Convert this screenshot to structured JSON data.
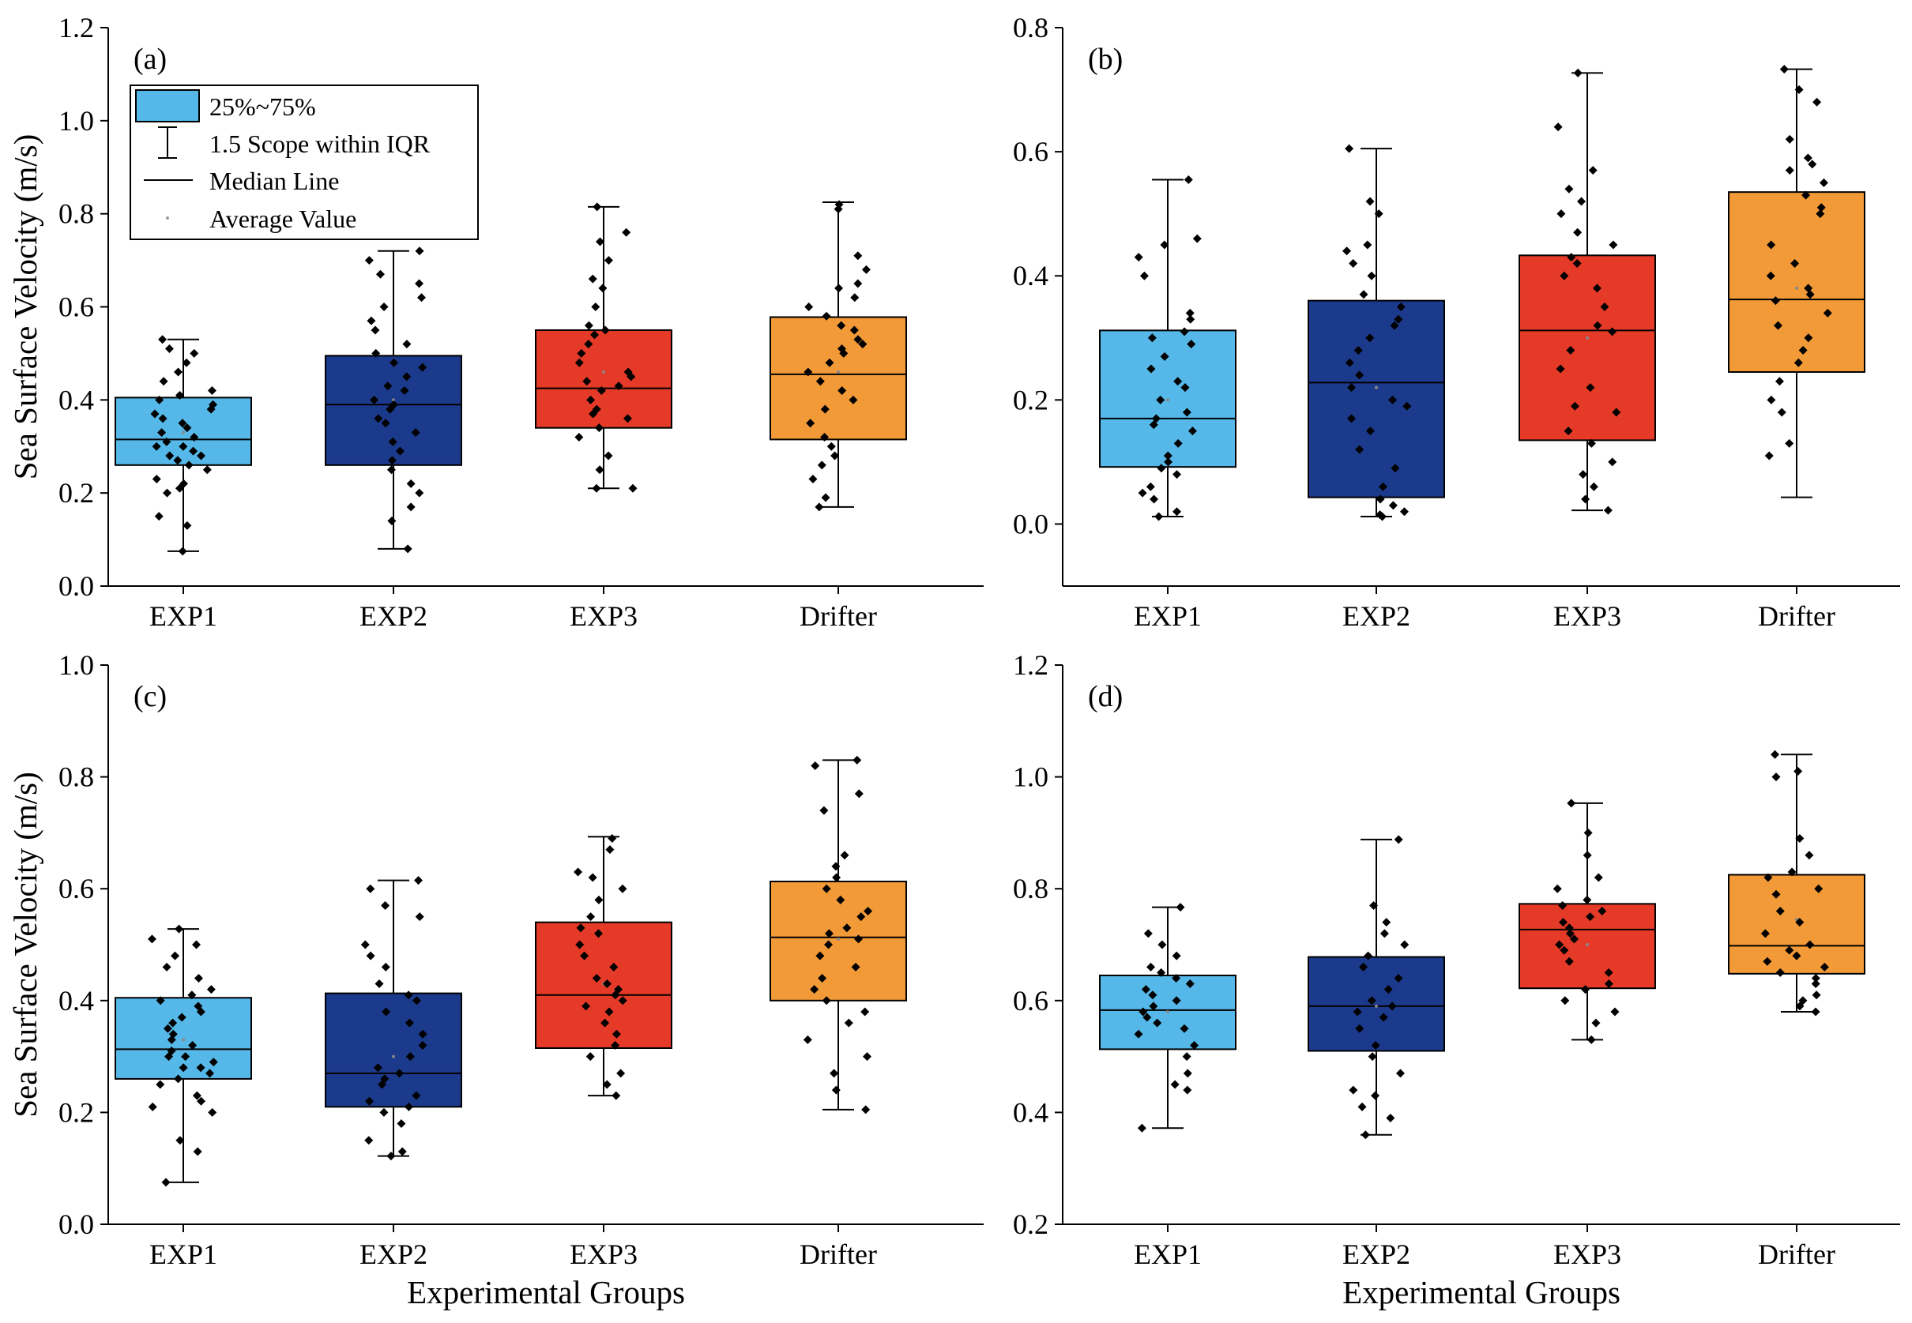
{
  "chart_data": [
    {
      "panel": "(a)",
      "type": "box",
      "ylabel": "Sea Surface Velocity (m/s)",
      "xlabel": "",
      "ylim": [
        0.0,
        1.2
      ],
      "yticks": [
        "0.0",
        "0.2",
        "0.4",
        "0.6",
        "0.8",
        "1.0",
        "1.2"
      ],
      "categories": [
        "EXP1",
        "EXP2",
        "EXP3",
        "Drifter"
      ],
      "boxes": [
        {
          "name": "EXP1",
          "color": "#55b8e8",
          "whisker_low": 0.075,
          "q1": 0.26,
          "median": 0.315,
          "q3": 0.405,
          "whisker_high": 0.53,
          "mean": 0.33,
          "points": [
            0.075,
            0.13,
            0.15,
            0.2,
            0.21,
            0.22,
            0.23,
            0.25,
            0.26,
            0.27,
            0.28,
            0.28,
            0.29,
            0.3,
            0.3,
            0.31,
            0.32,
            0.33,
            0.34,
            0.35,
            0.36,
            0.37,
            0.38,
            0.39,
            0.4,
            0.41,
            0.42,
            0.44,
            0.46,
            0.48,
            0.5,
            0.51,
            0.53
          ]
        },
        {
          "name": "EXP2",
          "color": "#1c3a8c",
          "whisker_low": 0.08,
          "q1": 0.26,
          "median": 0.39,
          "q3": 0.495,
          "whisker_high": 0.72,
          "mean": 0.4,
          "points": [
            0.08,
            0.14,
            0.17,
            0.2,
            0.22,
            0.25,
            0.27,
            0.29,
            0.31,
            0.33,
            0.35,
            0.36,
            0.38,
            0.39,
            0.4,
            0.42,
            0.43,
            0.45,
            0.47,
            0.48,
            0.5,
            0.52,
            0.55,
            0.57,
            0.6,
            0.62,
            0.65,
            0.67,
            0.7,
            0.72
          ]
        },
        {
          "name": "EXP3",
          "color": "#e53a27",
          "whisker_low": 0.21,
          "q1": 0.34,
          "median": 0.425,
          "q3": 0.55,
          "whisker_high": 0.815,
          "mean": 0.46,
          "points": [
            0.21,
            0.21,
            0.25,
            0.28,
            0.32,
            0.34,
            0.36,
            0.37,
            0.38,
            0.4,
            0.42,
            0.43,
            0.44,
            0.45,
            0.46,
            0.48,
            0.5,
            0.52,
            0.54,
            0.55,
            0.56,
            0.6,
            0.64,
            0.66,
            0.7,
            0.74,
            0.76,
            0.815
          ]
        },
        {
          "name": "Drifter",
          "color": "#f29a38",
          "whisker_low": 0.17,
          "q1": 0.315,
          "median": 0.455,
          "q3": 0.578,
          "whisker_high": 0.825,
          "mean": 0.46,
          "points": [
            0.17,
            0.19,
            0.23,
            0.26,
            0.28,
            0.3,
            0.32,
            0.35,
            0.38,
            0.4,
            0.42,
            0.44,
            0.46,
            0.48,
            0.5,
            0.51,
            0.52,
            0.53,
            0.55,
            0.56,
            0.58,
            0.6,
            0.62,
            0.64,
            0.65,
            0.68,
            0.71,
            0.81,
            0.82
          ]
        }
      ]
    },
    {
      "panel": "(b)",
      "type": "box",
      "ylabel": "",
      "xlabel": "",
      "ylim": [
        -0.1,
        0.8
      ],
      "yticks": [
        "0.0",
        "0.2",
        "0.4",
        "0.6",
        "0.8"
      ],
      "categories": [
        "EXP1",
        "EXP2",
        "EXP3",
        "Drifter"
      ],
      "boxes": [
        {
          "name": "EXP1",
          "color": "#55b8e8",
          "whisker_low": 0.012,
          "q1": 0.092,
          "median": 0.17,
          "q3": 0.312,
          "whisker_high": 0.555,
          "mean": 0.2,
          "points": [
            0.012,
            0.02,
            0.04,
            0.05,
            0.06,
            0.08,
            0.09,
            0.1,
            0.11,
            0.13,
            0.15,
            0.16,
            0.17,
            0.18,
            0.2,
            0.22,
            0.23,
            0.25,
            0.27,
            0.29,
            0.3,
            0.31,
            0.33,
            0.34,
            0.4,
            0.43,
            0.45,
            0.46,
            0.555
          ]
        },
        {
          "name": "EXP2",
          "color": "#1c3a8c",
          "whisker_low": 0.012,
          "q1": 0.043,
          "median": 0.228,
          "q3": 0.36,
          "whisker_high": 0.605,
          "mean": 0.22,
          "points": [
            0.012,
            0.015,
            0.02,
            0.03,
            0.04,
            0.06,
            0.09,
            0.12,
            0.15,
            0.17,
            0.19,
            0.2,
            0.22,
            0.24,
            0.26,
            0.28,
            0.3,
            0.32,
            0.33,
            0.35,
            0.37,
            0.4,
            0.42,
            0.44,
            0.45,
            0.5,
            0.52,
            0.605
          ]
        },
        {
          "name": "EXP3",
          "color": "#e53a27",
          "whisker_low": 0.022,
          "q1": 0.135,
          "median": 0.312,
          "q3": 0.433,
          "whisker_high": 0.727,
          "mean": 0.3,
          "points": [
            0.022,
            0.04,
            0.06,
            0.08,
            0.1,
            0.13,
            0.15,
            0.18,
            0.19,
            0.22,
            0.25,
            0.28,
            0.31,
            0.32,
            0.35,
            0.38,
            0.4,
            0.42,
            0.43,
            0.45,
            0.47,
            0.5,
            0.52,
            0.54,
            0.57,
            0.64,
            0.727
          ]
        },
        {
          "name": "Drifter",
          "color": "#f29a38",
          "whisker_low": 0.043,
          "q1": 0.245,
          "median": 0.362,
          "q3": 0.535,
          "whisker_high": 0.733,
          "mean": 0.38,
          "points": [
            0.11,
            0.13,
            0.18,
            0.2,
            0.23,
            0.26,
            0.28,
            0.3,
            0.32,
            0.34,
            0.36,
            0.37,
            0.38,
            0.4,
            0.42,
            0.45,
            0.5,
            0.51,
            0.53,
            0.55,
            0.57,
            0.58,
            0.59,
            0.62,
            0.68,
            0.7,
            0.733
          ]
        }
      ]
    },
    {
      "panel": "(c)",
      "type": "box",
      "ylabel": "Sea Surface Velocity (m/s)",
      "xlabel": "Experimental Groups",
      "ylim": [
        0.0,
        1.0
      ],
      "yticks": [
        "0.0",
        "0.2",
        "0.4",
        "0.6",
        "0.8",
        "1.0"
      ],
      "categories": [
        "EXP1",
        "EXP2",
        "EXP3",
        "Drifter"
      ],
      "boxes": [
        {
          "name": "EXP1",
          "color": "#55b8e8",
          "whisker_low": 0.075,
          "q1": 0.26,
          "median": 0.313,
          "q3": 0.405,
          "whisker_high": 0.528,
          "mean": 0.33,
          "points": [
            0.075,
            0.13,
            0.15,
            0.2,
            0.21,
            0.22,
            0.23,
            0.25,
            0.26,
            0.27,
            0.28,
            0.28,
            0.29,
            0.3,
            0.3,
            0.31,
            0.32,
            0.33,
            0.34,
            0.35,
            0.36,
            0.37,
            0.38,
            0.39,
            0.4,
            0.41,
            0.42,
            0.44,
            0.46,
            0.48,
            0.5,
            0.51,
            0.528
          ]
        },
        {
          "name": "EXP2",
          "color": "#1c3a8c",
          "whisker_low": 0.122,
          "q1": 0.21,
          "median": 0.27,
          "q3": 0.413,
          "whisker_high": 0.615,
          "mean": 0.3,
          "points": [
            0.122,
            0.13,
            0.15,
            0.18,
            0.2,
            0.21,
            0.22,
            0.23,
            0.25,
            0.26,
            0.27,
            0.28,
            0.3,
            0.32,
            0.34,
            0.36,
            0.38,
            0.4,
            0.41,
            0.43,
            0.46,
            0.48,
            0.5,
            0.55,
            0.57,
            0.6,
            0.615
          ]
        },
        {
          "name": "EXP3",
          "color": "#e53a27",
          "whisker_low": 0.23,
          "q1": 0.315,
          "median": 0.41,
          "q3": 0.54,
          "whisker_high": 0.693,
          "mean": 0.43,
          "points": [
            0.23,
            0.25,
            0.27,
            0.3,
            0.32,
            0.34,
            0.36,
            0.38,
            0.39,
            0.4,
            0.41,
            0.42,
            0.43,
            0.44,
            0.46,
            0.48,
            0.5,
            0.52,
            0.53,
            0.55,
            0.58,
            0.6,
            0.62,
            0.63,
            0.67,
            0.69
          ]
        },
        {
          "name": "Drifter",
          "color": "#f29a38",
          "whisker_low": 0.205,
          "q1": 0.4,
          "median": 0.513,
          "q3": 0.613,
          "whisker_high": 0.83,
          "mean": 0.51,
          "points": [
            0.205,
            0.24,
            0.27,
            0.3,
            0.33,
            0.36,
            0.38,
            0.4,
            0.42,
            0.44,
            0.46,
            0.48,
            0.5,
            0.51,
            0.52,
            0.53,
            0.55,
            0.56,
            0.58,
            0.6,
            0.62,
            0.64,
            0.66,
            0.74,
            0.77,
            0.82,
            0.83
          ]
        }
      ]
    },
    {
      "panel": "(d)",
      "type": "box",
      "ylabel": "",
      "xlabel": "Experimental Groups",
      "ylim": [
        0.2,
        1.2
      ],
      "yticks": [
        "0.2",
        "0.4",
        "0.6",
        "0.8",
        "1.0",
        "1.2"
      ],
      "categories": [
        "EXP1",
        "EXP2",
        "EXP3",
        "Drifter"
      ],
      "boxes": [
        {
          "name": "EXP1",
          "color": "#55b8e8",
          "whisker_low": 0.372,
          "q1": 0.513,
          "median": 0.583,
          "q3": 0.645,
          "whisker_high": 0.767,
          "mean": 0.58,
          "points": [
            0.372,
            0.44,
            0.45,
            0.47,
            0.5,
            0.52,
            0.54,
            0.55,
            0.56,
            0.57,
            0.58,
            0.59,
            0.6,
            0.61,
            0.62,
            0.63,
            0.64,
            0.65,
            0.66,
            0.68,
            0.7,
            0.72,
            0.767
          ]
        },
        {
          "name": "EXP2",
          "color": "#1c3a8c",
          "whisker_low": 0.36,
          "q1": 0.51,
          "median": 0.59,
          "q3": 0.678,
          "whisker_high": 0.888,
          "mean": 0.59,
          "points": [
            0.36,
            0.39,
            0.41,
            0.43,
            0.44,
            0.47,
            0.5,
            0.52,
            0.55,
            0.57,
            0.58,
            0.59,
            0.6,
            0.62,
            0.64,
            0.66,
            0.68,
            0.7,
            0.72,
            0.74,
            0.77,
            0.888
          ]
        },
        {
          "name": "EXP3",
          "color": "#e53a27",
          "whisker_low": 0.53,
          "q1": 0.622,
          "median": 0.727,
          "q3": 0.773,
          "whisker_high": 0.953,
          "mean": 0.7,
          "points": [
            0.53,
            0.56,
            0.58,
            0.6,
            0.62,
            0.63,
            0.65,
            0.67,
            0.69,
            0.7,
            0.71,
            0.72,
            0.73,
            0.74,
            0.75,
            0.76,
            0.77,
            0.78,
            0.8,
            0.82,
            0.86,
            0.9,
            0.953
          ]
        },
        {
          "name": "Drifter",
          "color": "#f29a38",
          "whisker_low": 0.58,
          "q1": 0.648,
          "median": 0.698,
          "q3": 0.825,
          "whisker_high": 1.04,
          "mean": 0.745,
          "points": [
            0.58,
            0.59,
            0.6,
            0.61,
            0.63,
            0.64,
            0.65,
            0.66,
            0.67,
            0.68,
            0.69,
            0.7,
            0.72,
            0.74,
            0.76,
            0.79,
            0.8,
            0.82,
            0.83,
            0.86,
            0.89,
            1.0,
            1.01,
            1.04
          ]
        }
      ]
    }
  ],
  "legend": {
    "items": [
      {
        "label": "25%~75%",
        "symbol": "box",
        "color": "#55b8e8"
      },
      {
        "label": "1.5 Scope within IQR",
        "symbol": "whisker"
      },
      {
        "label": "Median Line",
        "symbol": "line"
      },
      {
        "label": "Average Value",
        "symbol": "dot"
      }
    ]
  }
}
